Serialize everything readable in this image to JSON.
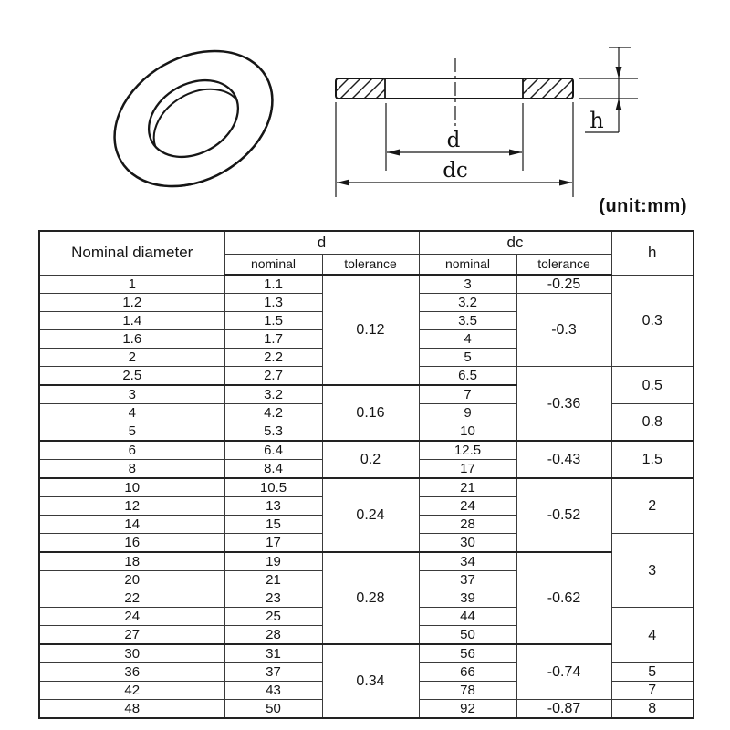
{
  "page": {
    "background": "#ffffff",
    "line_color": "#1c1c1c",
    "unit_note": "(unit:mm)"
  },
  "diagram": {
    "labels": {
      "d": "d",
      "dc": "dc",
      "h": "h"
    }
  },
  "table": {
    "header": {
      "nominal_diameter": "Nominal diameter",
      "d": "d",
      "dc": "dc",
      "h": "h",
      "sub_nominal": "nominal",
      "sub_tolerance": "tolerance"
    },
    "rows_nominal": [
      "1",
      "1.2",
      "1.4",
      "1.6",
      "2",
      "2.5",
      "3",
      "4",
      "5",
      "6",
      "8",
      "10",
      "12",
      "14",
      "16",
      "18",
      "20",
      "22",
      "24",
      "27",
      "30",
      "36",
      "42",
      "48"
    ],
    "rows_d_nominal": [
      "1.1",
      "1.3",
      "1.5",
      "1.7",
      "2.2",
      "2.7",
      "3.2",
      "4.2",
      "5.3",
      "6.4",
      "8.4",
      "10.5",
      "13",
      "15",
      "17",
      "19",
      "21",
      "23",
      "25",
      "28",
      "31",
      "37",
      "43",
      "50"
    ],
    "rows_dc_nominal": [
      "3",
      "3.2",
      "3.5",
      "4",
      "5",
      "6.5",
      "7",
      "9",
      "10",
      "12.5",
      "17",
      "21",
      "24",
      "28",
      "30",
      "34",
      "37",
      "39",
      "44",
      "50",
      "56",
      "66",
      "78",
      "92"
    ],
    "d_tolerance_groups": [
      {
        "value": "0.12",
        "rows": 6
      },
      {
        "value": "0.16",
        "rows": 3
      },
      {
        "value": "0.2",
        "rows": 2
      },
      {
        "value": "0.24",
        "rows": 4
      },
      {
        "value": "0.28",
        "rows": 5
      },
      {
        "value": "0.34",
        "rows": 4
      }
    ],
    "dc_tolerance_groups": [
      {
        "value": "-0.25",
        "rows": 1
      },
      {
        "value": "-0.3",
        "rows": 4
      },
      {
        "value": "-0.36",
        "rows": 4
      },
      {
        "value": "-0.43",
        "rows": 2
      },
      {
        "value": "-0.52",
        "rows": 4
      },
      {
        "value": "-0.62",
        "rows": 5
      },
      {
        "value": "-0.74",
        "rows": 3
      },
      {
        "value": "-0.87",
        "rows": 1
      }
    ],
    "h_groups": [
      {
        "value": "0.3",
        "rows": 5
      },
      {
        "value": "0.5",
        "rows": 2
      },
      {
        "value": "0.8",
        "rows": 2
      },
      {
        "value": "1.5",
        "rows": 2
      },
      {
        "value": "2",
        "rows": 3
      },
      {
        "value": "3",
        "rows": 4
      },
      {
        "value": "4",
        "rows": 3
      },
      {
        "value": "5",
        "rows": 1
      },
      {
        "value": "7",
        "rows": 1
      },
      {
        "value": "8",
        "rows": 1
      }
    ]
  }
}
